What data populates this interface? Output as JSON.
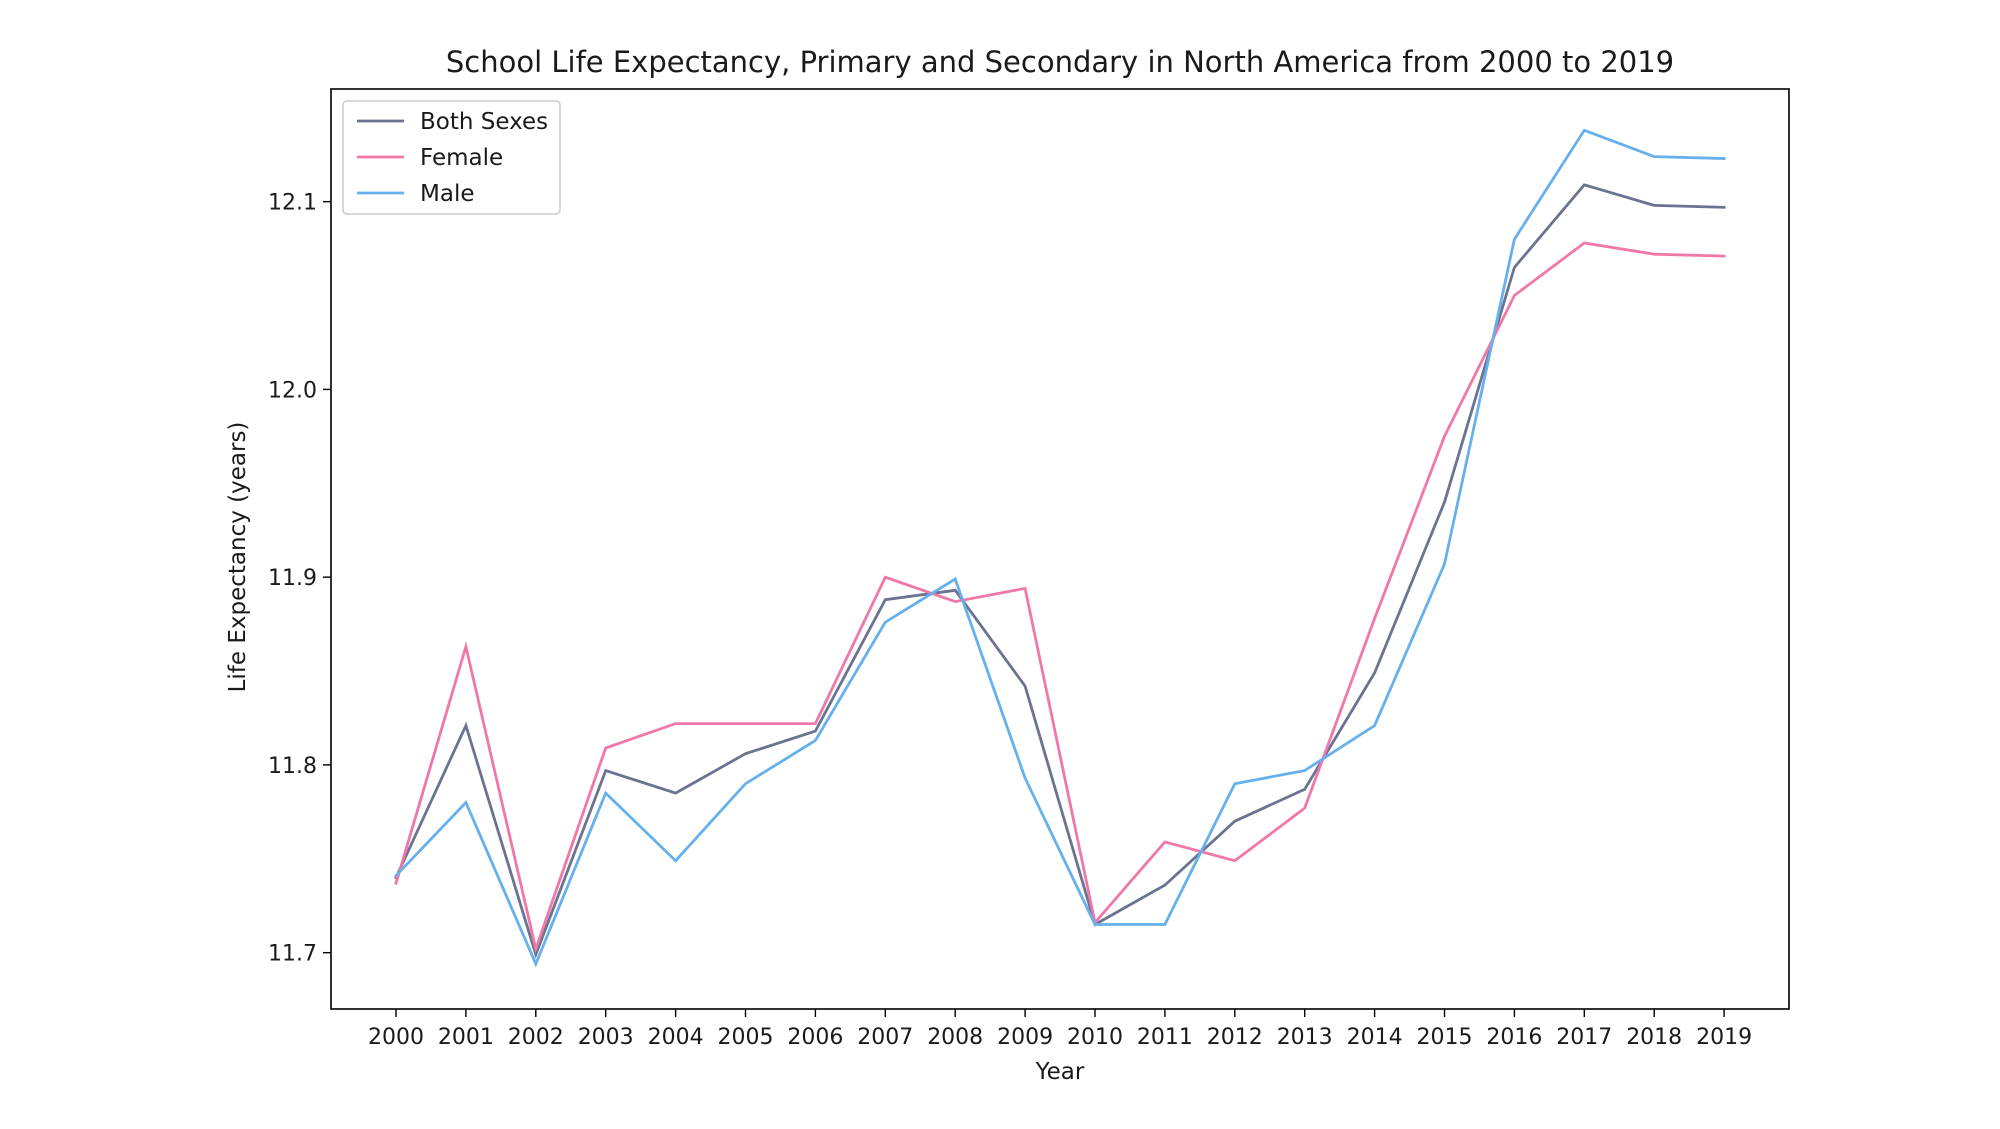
{
  "chart_data": {
    "type": "line",
    "title": "School Life Expectancy, Primary and Secondary in North America from 2000 to 2019",
    "xlabel": "Year",
    "ylabel": "Life Expectancy (years)",
    "ylim": [
      11.67,
      12.16
    ],
    "y_ticks": [
      "11.7",
      "11.8",
      "11.9",
      "12.0",
      "12.1"
    ],
    "categories": [
      "2000",
      "2001",
      "2002",
      "2003",
      "2004",
      "2005",
      "2006",
      "2007",
      "2008",
      "2009",
      "2010",
      "2011",
      "2012",
      "2013",
      "2014",
      "2015",
      "2016",
      "2017",
      "2018",
      "2019"
    ],
    "legend_position": "top-left",
    "grid": false,
    "series": [
      {
        "name": "Both Sexes",
        "color": "#6b7390",
        "values": [
          11.74,
          11.821,
          11.699,
          11.797,
          11.785,
          11.806,
          11.818,
          11.888,
          11.893,
          11.842,
          11.715,
          11.736,
          11.77,
          11.787,
          11.849,
          11.94,
          12.065,
          12.109,
          12.098,
          12.097
        ]
      },
      {
        "name": "Female",
        "color": "#f078a8",
        "values": [
          11.737,
          11.863,
          11.702,
          11.809,
          11.822,
          11.822,
          11.822,
          11.9,
          11.887,
          11.894,
          11.716,
          11.759,
          11.749,
          11.777,
          11.878,
          11.975,
          12.05,
          12.078,
          12.072,
          12.071
        ]
      },
      {
        "name": "Male",
        "color": "#66b0ee",
        "values": [
          11.741,
          11.78,
          11.694,
          11.785,
          11.749,
          11.79,
          11.813,
          11.876,
          11.899,
          11.793,
          11.715,
          11.715,
          11.79,
          11.797,
          11.821,
          11.907,
          12.08,
          12.138,
          12.124,
          12.123
        ]
      }
    ]
  }
}
